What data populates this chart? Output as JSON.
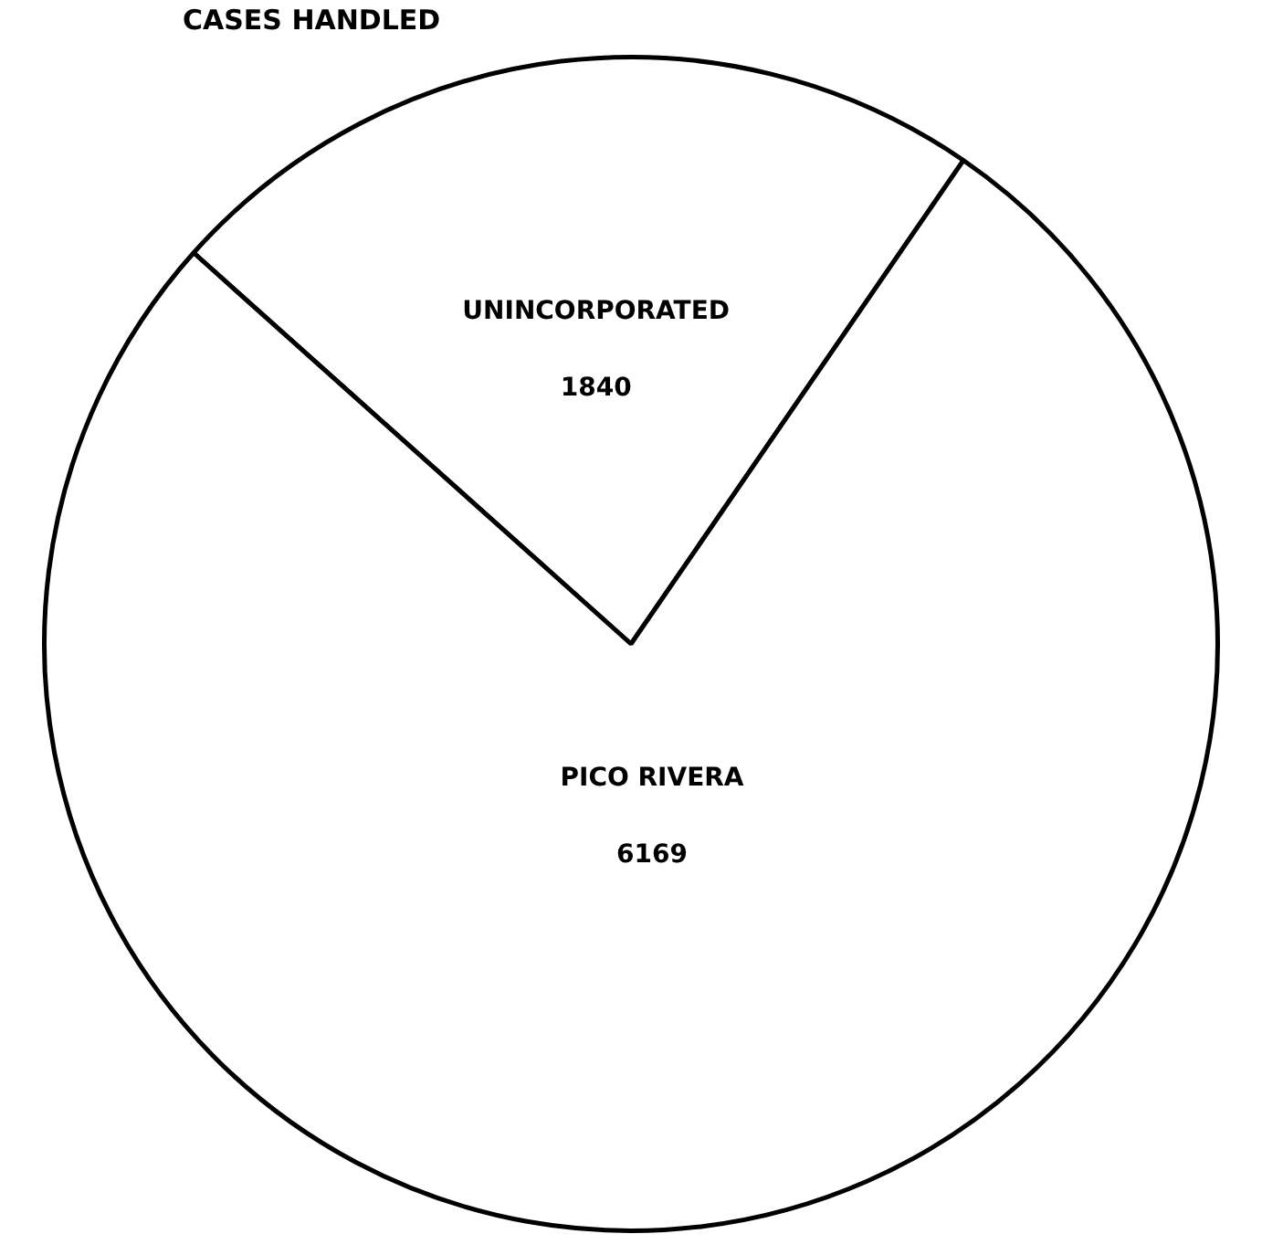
{
  "chart_data": {
    "type": "pie",
    "title": "CASES HANDLED",
    "categories": [
      "UNINCORPORATED",
      "PICO RIVERA"
    ],
    "values": [
      1840,
      6169
    ],
    "colors": [
      "#ffffff",
      "#ffffff"
    ],
    "data_labels": true,
    "legend": false
  }
}
